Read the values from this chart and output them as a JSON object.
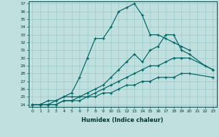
{
  "xlabel": "Humidex (Indice chaleur)",
  "background_color": "#c0e0e0",
  "line_color": "#006666",
  "xlim": [
    -0.5,
    23.5
  ],
  "ylim": [
    23.7,
    37.3
  ],
  "yticks": [
    24,
    25,
    26,
    27,
    28,
    29,
    30,
    31,
    32,
    33,
    34,
    35,
    36,
    37
  ],
  "xticks": [
    0,
    1,
    2,
    3,
    4,
    5,
    6,
    7,
    8,
    9,
    10,
    11,
    12,
    13,
    14,
    15,
    16,
    17,
    18,
    19,
    20,
    21,
    22,
    23
  ],
  "lines": [
    {
      "x": [
        0,
        1,
        2,
        3,
        4,
        5,
        6,
        7,
        8,
        9,
        10,
        11,
        12,
        13,
        14,
        15,
        16,
        17,
        18,
        19,
        20
      ],
      "y": [
        24,
        24,
        24.5,
        24.5,
        25,
        25.5,
        27.5,
        30,
        32.5,
        32.5,
        34,
        36,
        36.5,
        37,
        35.5,
        33,
        33,
        32.5,
        32,
        31.5,
        31
      ]
    },
    {
      "x": [
        0,
        1,
        2,
        3,
        4,
        5,
        6,
        7,
        8,
        9,
        10,
        11,
        12,
        13,
        14,
        15,
        16,
        17,
        18,
        19,
        20,
        22,
        23
      ],
      "y": [
        24,
        24,
        24,
        24.5,
        25,
        25,
        25,
        25.5,
        26,
        26.5,
        27.5,
        28.5,
        29.5,
        30.5,
        29.5,
        31,
        31.5,
        33,
        33,
        31,
        30.5,
        29,
        28.5
      ]
    },
    {
      "x": [
        0,
        1,
        2,
        3,
        4,
        5,
        6,
        7,
        8,
        9,
        10,
        11,
        12,
        13,
        14,
        15,
        16,
        17,
        18,
        19,
        20,
        23
      ],
      "y": [
        24,
        24,
        24,
        24,
        24.5,
        24.5,
        25,
        25,
        25.5,
        26,
        26.5,
        27,
        27.5,
        28,
        28.5,
        29,
        29,
        29.5,
        30,
        30,
        30,
        28.5
      ]
    },
    {
      "x": [
        0,
        1,
        2,
        3,
        4,
        5,
        6,
        7,
        8,
        9,
        10,
        11,
        12,
        13,
        14,
        15,
        16,
        17,
        18,
        19,
        20,
        23
      ],
      "y": [
        24,
        24,
        24,
        24,
        24.5,
        24.5,
        24.5,
        25,
        25,
        25.5,
        25.5,
        26,
        26.5,
        26.5,
        27,
        27,
        27.5,
        27.5,
        27.5,
        28,
        28,
        27.5
      ]
    }
  ]
}
